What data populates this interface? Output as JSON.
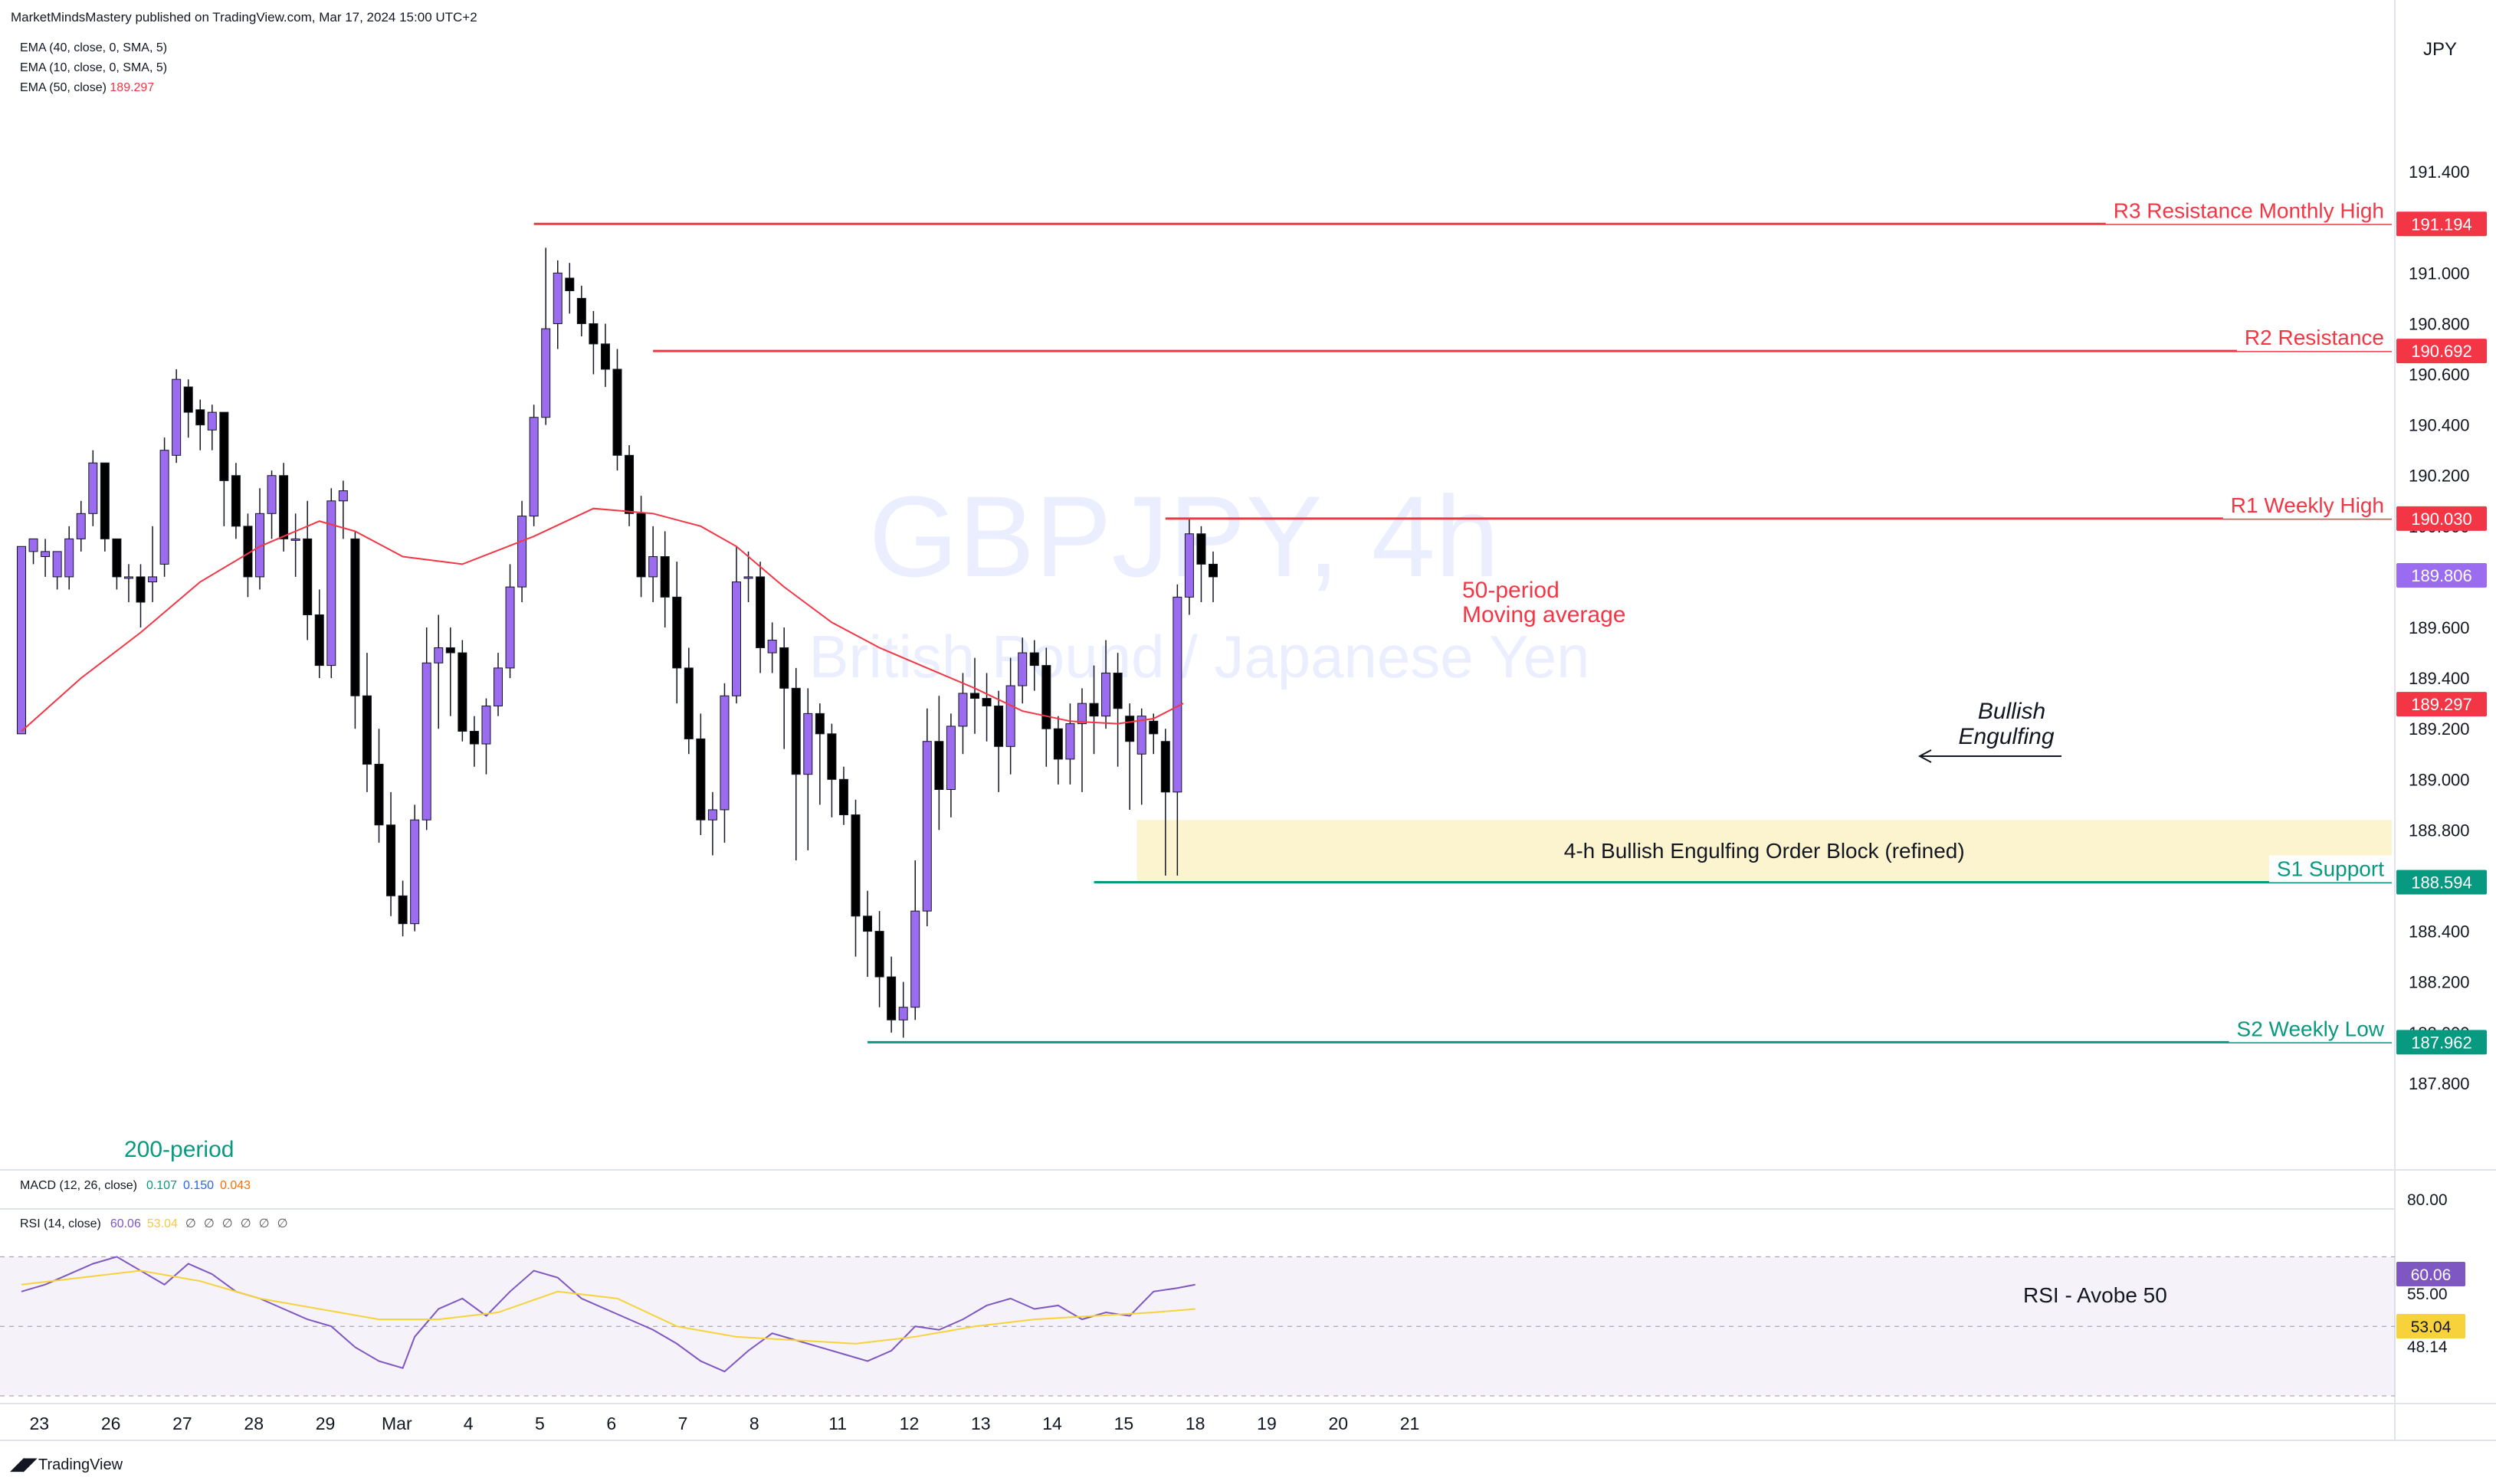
{
  "header": {
    "publisher": "MarketMindsMastery published on TradingView.com, Mar 17, 2024 15:00 UTC+2",
    "indicators": [
      {
        "label": "EMA (40, close, 0, SMA, 5)",
        "value": ""
      },
      {
        "label": "EMA (10, close, 0, SMA, 5)",
        "value": ""
      },
      {
        "label": "EMA (50, close)",
        "value": "189.297"
      }
    ]
  },
  "watermark": {
    "symbol": "GBPJPY, 4h",
    "name": "British Pound / Japanese Yen"
  },
  "currency": "JPY",
  "footer": {
    "brand": "TradingView"
  },
  "colors": {
    "bull": "#9b6cf0",
    "bear": "#000000",
    "resistance": "#f23645",
    "support": "#089981",
    "ema": "#f23645",
    "rsi": "#7e57c2",
    "rsi_ma": "#f7d23a",
    "order_block": "#fcf3cf"
  },
  "chart_data": [
    {
      "type": "candlestick",
      "title": "GBPJPY, 4h",
      "subtitle": "British Pound / Japanese Yen",
      "ylim": [
        187.5,
        191.8
      ],
      "y_ticks": [
        "191.400",
        "191.000",
        "190.800",
        "190.600",
        "190.400",
        "190.200",
        "190.000",
        "189.800",
        "189.600",
        "189.400",
        "189.200",
        "189.000",
        "188.800",
        "188.600",
        "188.400",
        "188.200",
        "188.000",
        "187.800"
      ],
      "x_ticks": [
        {
          "label": "23",
          "i": 1.5
        },
        {
          "label": "26",
          "i": 7.5
        },
        {
          "label": "27",
          "i": 13.5
        },
        {
          "label": "28",
          "i": 19.5
        },
        {
          "label": "29",
          "i": 25.5
        },
        {
          "label": "Mar",
          "i": 31.5
        },
        {
          "label": "4",
          "i": 37.5
        },
        {
          "label": "5",
          "i": 43.5
        },
        {
          "label": "6",
          "i": 49.5
        },
        {
          "label": "7",
          "i": 55.5
        },
        {
          "label": "8",
          "i": 61.5
        },
        {
          "label": "11",
          "i": 68.5
        },
        {
          "label": "12",
          "i": 74.5
        },
        {
          "label": "13",
          "i": 80.5
        },
        {
          "label": "14",
          "i": 86.5
        },
        {
          "label": "15",
          "i": 92.5
        },
        {
          "label": "18",
          "i": 98.5
        },
        {
          "label": "19",
          "i": 104.5
        },
        {
          "label": "20",
          "i": 110.5
        },
        {
          "label": "21",
          "i": 116.5
        }
      ],
      "candles": [
        [
          189.18,
          189.92,
          189.92,
          189.18
        ],
        [
          189.9,
          189.95,
          189.95,
          189.85
        ],
        [
          189.88,
          189.9,
          189.95,
          189.8
        ],
        [
          189.8,
          189.9,
          189.9,
          189.75
        ],
        [
          189.8,
          189.95,
          190.0,
          189.75
        ],
        [
          189.95,
          190.05,
          190.1,
          189.9
        ],
        [
          190.05,
          190.25,
          190.3,
          190.0
        ],
        [
          190.25,
          189.95,
          190.25,
          189.9
        ],
        [
          189.95,
          189.8,
          189.95,
          189.75
        ],
        [
          189.8,
          189.8,
          189.85,
          189.7
        ],
        [
          189.8,
          189.7,
          189.85,
          189.6
        ],
        [
          189.78,
          189.8,
          190.0,
          189.7
        ],
        [
          189.85,
          190.3,
          190.35,
          189.8
        ],
        [
          190.28,
          190.58,
          190.62,
          190.25
        ],
        [
          190.55,
          190.45,
          190.58,
          190.35
        ],
        [
          190.46,
          190.4,
          190.5,
          190.3
        ],
        [
          190.38,
          190.45,
          190.48,
          190.3
        ],
        [
          190.45,
          190.18,
          190.45,
          190.0
        ],
        [
          190.2,
          190.0,
          190.25,
          189.95
        ],
        [
          190.0,
          189.8,
          190.05,
          189.72
        ],
        [
          189.8,
          190.05,
          190.15,
          189.75
        ],
        [
          190.05,
          190.2,
          190.22,
          189.95
        ],
        [
          190.2,
          189.95,
          190.25,
          189.9
        ],
        [
          189.95,
          189.95,
          190.05,
          189.8
        ],
        [
          189.95,
          189.65,
          190.1,
          189.55
        ],
        [
          189.65,
          189.45,
          189.75,
          189.4
        ],
        [
          189.45,
          190.1,
          190.15,
          189.4
        ],
        [
          190.1,
          190.14,
          190.18,
          189.95
        ],
        [
          189.95,
          189.33,
          189.98,
          189.2
        ],
        [
          189.33,
          189.06,
          189.5,
          188.95
        ],
        [
          189.06,
          188.82,
          189.2,
          188.75
        ],
        [
          188.82,
          188.54,
          188.95,
          188.46
        ],
        [
          188.54,
          188.43,
          188.6,
          188.38
        ],
        [
          188.43,
          188.84,
          188.9,
          188.4
        ],
        [
          188.84,
          189.46,
          189.6,
          188.8
        ],
        [
          189.46,
          189.52,
          189.65,
          189.2
        ],
        [
          189.52,
          189.5,
          189.6,
          189.25
        ],
        [
          189.5,
          189.19,
          189.55,
          189.15
        ],
        [
          189.19,
          189.14,
          189.25,
          189.05
        ],
        [
          189.14,
          189.29,
          189.32,
          189.02
        ],
        [
          189.29,
          189.44,
          189.5,
          189.25
        ],
        [
          189.44,
          189.76,
          189.85,
          189.4
        ],
        [
          189.76,
          190.04,
          190.1,
          189.7
        ],
        [
          190.04,
          190.43,
          190.48,
          190.0
        ],
        [
          190.43,
          190.78,
          191.1,
          190.4
        ],
        [
          190.8,
          191.0,
          191.05,
          190.7
        ],
        [
          190.98,
          190.93,
          191.04,
          190.84
        ],
        [
          190.9,
          190.8,
          190.95,
          190.75
        ],
        [
          190.8,
          190.72,
          190.85,
          190.6
        ],
        [
          190.72,
          190.62,
          190.8,
          190.55
        ],
        [
          190.62,
          190.28,
          190.7,
          190.22
        ],
        [
          190.28,
          190.05,
          190.32,
          190.0
        ],
        [
          190.05,
          189.8,
          190.12,
          189.72
        ],
        [
          189.8,
          189.88,
          190.0,
          189.7
        ],
        [
          189.88,
          189.72,
          189.98,
          189.6
        ],
        [
          189.72,
          189.44,
          189.86,
          189.3
        ],
        [
          189.44,
          189.16,
          189.52,
          189.1
        ],
        [
          189.16,
          188.84,
          189.26,
          188.78
        ],
        [
          188.84,
          188.88,
          188.95,
          188.7
        ],
        [
          188.88,
          189.33,
          189.38,
          188.75
        ],
        [
          189.33,
          189.78,
          189.92,
          189.3
        ],
        [
          189.8,
          189.8,
          189.9,
          189.7
        ],
        [
          189.8,
          189.52,
          189.86,
          189.42
        ],
        [
          189.5,
          189.55,
          189.62,
          189.42
        ],
        [
          189.52,
          189.36,
          189.6,
          189.12
        ],
        [
          189.36,
          189.02,
          189.44,
          188.68
        ],
        [
          189.02,
          189.26,
          189.36,
          188.72
        ],
        [
          189.26,
          189.18,
          189.3,
          188.9
        ],
        [
          189.18,
          189.0,
          189.22,
          188.85
        ],
        [
          189.0,
          188.86,
          189.05,
          188.82
        ],
        [
          188.86,
          188.46,
          188.92,
          188.3
        ],
        [
          188.46,
          188.4,
          188.56,
          188.22
        ],
        [
          188.4,
          188.22,
          188.48,
          188.1
        ],
        [
          188.22,
          188.05,
          188.3,
          188.0
        ],
        [
          188.05,
          188.1,
          188.2,
          187.98
        ],
        [
          188.1,
          188.48,
          188.68,
          188.05
        ],
        [
          188.48,
          189.15,
          189.28,
          188.42
        ],
        [
          189.15,
          188.96,
          189.33,
          188.8
        ],
        [
          188.96,
          189.21,
          189.26,
          188.85
        ],
        [
          189.21,
          189.34,
          189.42,
          189.1
        ],
        [
          189.34,
          189.32,
          189.48,
          189.18
        ],
        [
          189.32,
          189.29,
          189.42,
          189.15
        ],
        [
          189.29,
          189.13,
          189.35,
          188.95
        ],
        [
          189.13,
          189.37,
          189.48,
          189.02
        ],
        [
          189.37,
          189.5,
          189.56,
          189.3
        ],
        [
          189.5,
          189.45,
          189.55,
          189.35
        ],
        [
          189.45,
          189.2,
          189.52,
          189.05
        ],
        [
          189.2,
          189.08,
          189.25,
          188.98
        ],
        [
          189.08,
          189.22,
          189.3,
          188.98
        ],
        [
          189.22,
          189.3,
          189.36,
          188.95
        ],
        [
          189.3,
          189.25,
          189.45,
          189.1
        ],
        [
          189.25,
          189.42,
          189.55,
          189.2
        ],
        [
          189.42,
          189.28,
          189.5,
          189.05
        ],
        [
          189.25,
          189.15,
          189.3,
          188.88
        ],
        [
          189.1,
          189.25,
          189.28,
          188.9
        ],
        [
          189.23,
          189.18,
          189.26,
          189.1
        ],
        [
          189.15,
          188.95,
          189.2,
          188.62
        ],
        [
          188.95,
          189.72,
          189.77,
          188.62
        ],
        [
          189.72,
          189.97,
          190.03,
          189.65
        ],
        [
          189.97,
          189.85,
          190.0,
          189.7
        ],
        [
          189.85,
          189.8,
          189.9,
          189.7
        ]
      ],
      "ema50": [
        [
          0,
          189.19
        ],
        [
          5,
          189.4
        ],
        [
          10,
          189.58
        ],
        [
          15,
          189.78
        ],
        [
          20,
          189.92
        ],
        [
          25,
          190.02
        ],
        [
          28,
          189.98
        ],
        [
          32,
          189.88
        ],
        [
          37,
          189.85
        ],
        [
          43,
          189.96
        ],
        [
          48,
          190.07
        ],
        [
          53,
          190.05
        ],
        [
          57,
          190.0
        ],
        [
          60,
          189.92
        ],
        [
          64,
          189.76
        ],
        [
          68,
          189.62
        ],
        [
          72,
          189.52
        ],
        [
          76,
          189.44
        ],
        [
          80,
          189.36
        ],
        [
          84,
          189.27
        ],
        [
          88,
          189.23
        ],
        [
          92,
          189.22
        ],
        [
          95,
          189.24
        ],
        [
          97.5,
          189.3
        ]
      ],
      "levels": [
        {
          "name": "R3 Resistance Monthly High",
          "value": "191.194",
          "kind": "resistance",
          "start": 43
        },
        {
          "name": "R2 Resistance",
          "value": "190.692",
          "kind": "resistance",
          "start": 53
        },
        {
          "name": "R1 Weekly High",
          "value": "190.030",
          "kind": "resistance",
          "start": 96
        },
        {
          "name": "S1 Support",
          "value": "188.594",
          "kind": "support",
          "start": 90
        },
        {
          "name": "S2 Weekly Low",
          "value": "187.962",
          "kind": "support",
          "start": 71
        }
      ],
      "price_tags": [
        {
          "value": "189.806",
          "kind": "last"
        },
        {
          "value": "189.297",
          "kind": "ema"
        }
      ],
      "annotations": {
        "ma_label": [
          "50-period",
          "Moving average"
        ],
        "engulf_label": [
          "Bullish",
          "Engulfing"
        ],
        "order_block": "4-h Bullish Engulfing Order Block (refined)",
        "order_block_range": [
          188.6,
          188.84
        ],
        "left_label": "200-period"
      }
    },
    {
      "type": "line",
      "title": "RSI (14, close)",
      "header_values": [
        "60.06",
        "53.04",
        "∅",
        "∅",
        "∅",
        "∅",
        "∅",
        "∅"
      ],
      "macd": {
        "label": "MACD (12, 26, close)",
        "values": [
          "0.107",
          "0.150",
          "0.043"
        ]
      },
      "ylim": [
        30,
        80
      ],
      "band": [
        30,
        70
      ],
      "y_ticks": [
        "80.00",
        "55.00",
        "48.14"
      ],
      "value_tags": [
        {
          "value": "60.06",
          "kind": "rsi"
        },
        {
          "value": "53.04",
          "kind": "ma"
        }
      ],
      "rsi": [
        [
          0,
          60
        ],
        [
          2,
          62
        ],
        [
          4,
          65
        ],
        [
          6,
          68
        ],
        [
          8,
          70
        ],
        [
          10,
          66
        ],
        [
          12,
          62
        ],
        [
          14,
          68
        ],
        [
          16,
          65
        ],
        [
          18,
          60
        ],
        [
          20,
          58
        ],
        [
          22,
          55
        ],
        [
          24,
          52
        ],
        [
          26,
          50
        ],
        [
          28,
          44
        ],
        [
          30,
          40
        ],
        [
          32,
          38
        ],
        [
          33,
          47
        ],
        [
          35,
          55
        ],
        [
          37,
          58
        ],
        [
          39,
          53
        ],
        [
          41,
          60
        ],
        [
          43,
          66
        ],
        [
          45,
          64
        ],
        [
          47,
          58
        ],
        [
          49,
          55
        ],
        [
          51,
          52
        ],
        [
          53,
          49
        ],
        [
          55,
          45
        ],
        [
          57,
          40
        ],
        [
          59,
          37
        ],
        [
          61,
          43
        ],
        [
          63,
          48
        ],
        [
          65,
          46
        ],
        [
          67,
          44
        ],
        [
          69,
          42
        ],
        [
          71,
          40
        ],
        [
          73,
          43
        ],
        [
          75,
          50
        ],
        [
          77,
          49
        ],
        [
          79,
          52
        ],
        [
          81,
          56
        ],
        [
          83,
          58
        ],
        [
          85,
          55
        ],
        [
          87,
          56
        ],
        [
          89,
          52
        ],
        [
          91,
          54
        ],
        [
          93,
          53
        ],
        [
          95,
          60
        ],
        [
          97,
          61
        ],
        [
          98.5,
          62
        ]
      ],
      "rsi_ma": [
        [
          0,
          62
        ],
        [
          5,
          64
        ],
        [
          10,
          66
        ],
        [
          15,
          63
        ],
        [
          20,
          58
        ],
        [
          25,
          55
        ],
        [
          30,
          52
        ],
        [
          35,
          52
        ],
        [
          40,
          54
        ],
        [
          45,
          60
        ],
        [
          50,
          58
        ],
        [
          55,
          50
        ],
        [
          60,
          47
        ],
        [
          65,
          46
        ],
        [
          70,
          45
        ],
        [
          75,
          47
        ],
        [
          80,
          50
        ],
        [
          85,
          52
        ],
        [
          90,
          53
        ],
        [
          95,
          54
        ],
        [
          98.5,
          55
        ]
      ],
      "annotation": "RSI - Avobe 50"
    }
  ]
}
